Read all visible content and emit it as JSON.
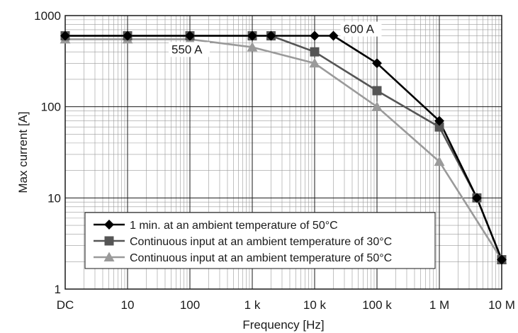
{
  "chart_data": {
    "type": "line",
    "xlabel": "Frequency [Hz]",
    "ylabel": "Max current [A]",
    "x_scale": "log",
    "y_scale": "log",
    "xlim": [
      1,
      10000000
    ],
    "ylim": [
      1,
      1000
    ],
    "grid": true,
    "legend_position": "bottom-left",
    "x_ticks": [
      {
        "value": 1,
        "label": "DC"
      },
      {
        "value": 10,
        "label": "10"
      },
      {
        "value": 100,
        "label": "100"
      },
      {
        "value": 1000,
        "label": "1 k"
      },
      {
        "value": 10000,
        "label": "10 k"
      },
      {
        "value": 100000,
        "label": "100 k"
      },
      {
        "value": 1000000,
        "label": "1 M"
      },
      {
        "value": 10000000,
        "label": "10 M"
      }
    ],
    "y_ticks": [
      {
        "value": 1,
        "label": "1"
      },
      {
        "value": 10,
        "label": "10"
      },
      {
        "value": 100,
        "label": "100"
      },
      {
        "value": 1000,
        "label": "1000"
      }
    ],
    "series": [
      {
        "name": "1 min. at an ambient temperature of 50°C",
        "marker": "diamond",
        "color": "#000000",
        "x": [
          1,
          10,
          100,
          1000,
          2000,
          10000,
          20000,
          100000,
          1000000,
          4000000,
          10000000
        ],
        "y": [
          600,
          600,
          600,
          600,
          600,
          600,
          600,
          300,
          70,
          10,
          2.1
        ]
      },
      {
        "name": "Continuous input at an ambient temperature of 30°C",
        "marker": "square",
        "color": "#555555",
        "x": [
          1,
          10,
          100,
          1000,
          2000,
          10000,
          100000,
          1000000,
          4000000,
          10000000
        ],
        "y": [
          600,
          600,
          600,
          600,
          600,
          400,
          150,
          60,
          10,
          2.1
        ]
      },
      {
        "name": "Continuous input at an ambient temperature of 50°C",
        "marker": "triangle",
        "color": "#9a9a9a",
        "x": [
          1,
          10,
          100,
          1000,
          10000,
          100000,
          1000000,
          10000000
        ],
        "y": [
          550,
          550,
          550,
          450,
          300,
          100,
          25,
          2.1
        ]
      }
    ],
    "annotations": [
      {
        "text": "600 A",
        "x": 20000,
        "y": 600
      },
      {
        "text": "550 A",
        "x": 100,
        "y": 550
      }
    ]
  }
}
